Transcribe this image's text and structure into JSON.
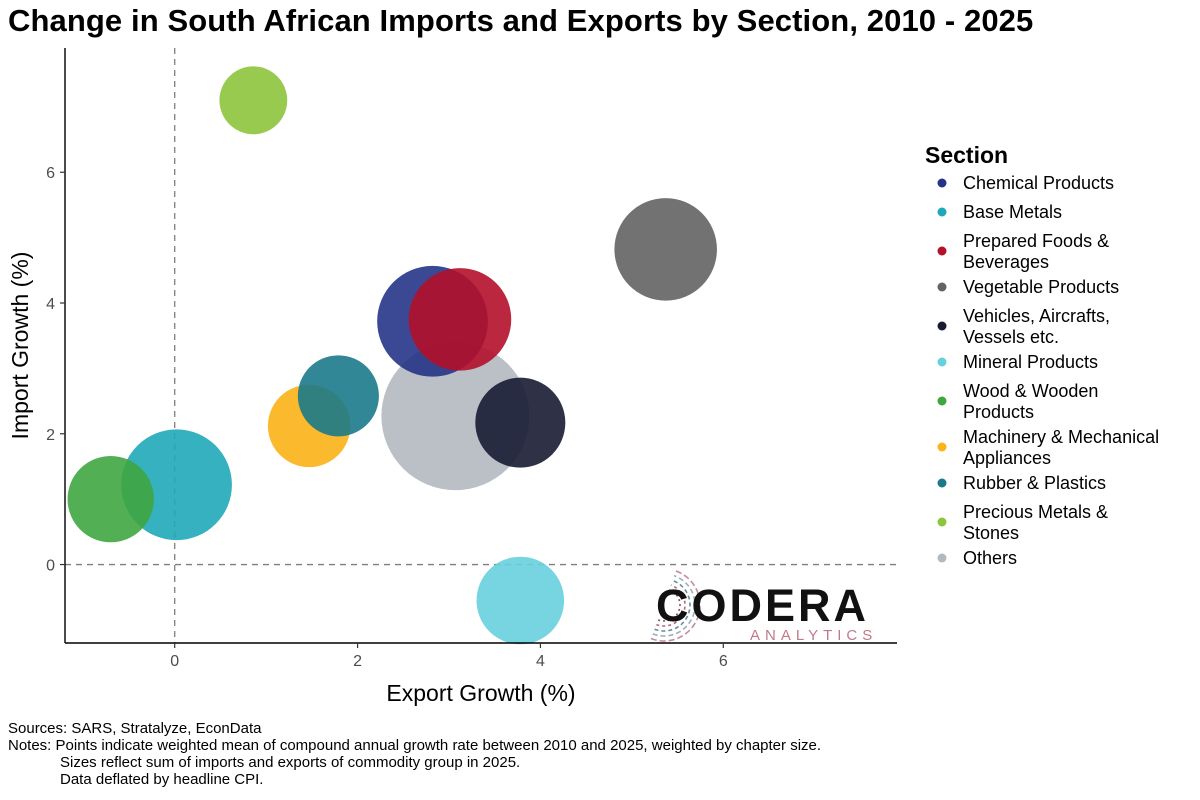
{
  "chart_data": {
    "type": "scatter",
    "title": "Change in South African Imports and Exports by Section, 2010 - 2025",
    "xlabel": "Export Growth (%)",
    "ylabel": "Import Growth (%)",
    "xlim": [
      -1.2,
      7.9
    ],
    "ylim": [
      -1.2,
      7.9
    ],
    "xticks": [
      0,
      2,
      4,
      6
    ],
    "yticks": [
      0,
      2,
      4,
      6
    ],
    "reference_lines": {
      "x": 0,
      "y": 0,
      "style": "dashed"
    },
    "grid": false,
    "legend": {
      "title": "Section",
      "position": "right"
    },
    "series": [
      {
        "label_lines": [
          "Chemical Products"
        ],
        "color": "#263487",
        "x": 2.82,
        "y": 3.72,
        "size_rel": 0.56
      },
      {
        "label_lines": [
          "Base Metals"
        ],
        "color": "#1fa8b8",
        "x": 0.02,
        "y": 1.22,
        "size_rel": 0.56
      },
      {
        "label_lines": [
          "Prepared Foods &",
          "Beverages"
        ],
        "color": "#b3102a",
        "x": 3.12,
        "y": 3.75,
        "size_rel": 0.48
      },
      {
        "label_lines": [
          "Vegetable Products"
        ],
        "color": "#636363",
        "x": 5.37,
        "y": 4.82,
        "size_rel": 0.48
      },
      {
        "label_lines": [
          "Vehicles, Aircrafts,",
          "Vessels etc."
        ],
        "color": "#181c33",
        "x": 3.78,
        "y": 2.17,
        "size_rel": 0.37
      },
      {
        "label_lines": [
          "Mineral Products"
        ],
        "color": "#67d0dd",
        "x": 3.78,
        "y": -0.55,
        "size_rel": 0.35
      },
      {
        "label_lines": [
          "Wood & Wooden",
          "Products"
        ],
        "color": "#3fa640",
        "x": -0.7,
        "y": 1.0,
        "size_rel": 0.34
      },
      {
        "label_lines": [
          "Machinery & Mechanical",
          "Appliances"
        ],
        "color": "#fbb317",
        "x": 1.47,
        "y": 2.12,
        "size_rel": 0.31
      },
      {
        "label_lines": [
          "Rubber & Plastics"
        ],
        "color": "#1b7a89",
        "x": 1.79,
        "y": 2.58,
        "size_rel": 0.3
      },
      {
        "label_lines": [
          "Precious Metals &",
          "Stones"
        ],
        "color": "#8cc43c",
        "x": 0.86,
        "y": 7.1,
        "size_rel": 0.21
      },
      {
        "label_lines": [
          "Others"
        ],
        "color": "#b4b9c1",
        "x": 3.07,
        "y": 2.27,
        "size_rel": 1.0
      }
    ]
  },
  "logo": {
    "word": "CODERA",
    "sub": "ANALYTICS"
  },
  "footer": {
    "sources": "Sources: SARS, Stratalyze, EconData",
    "notes": [
      "Notes: Points indicate weighted mean of compound annual growth rate between 2010 and 2025, weighted by chapter size.",
      "Sizes reflect sum of imports and exports of commodity group in 2025.",
      "Data deflated by headline CPI."
    ]
  }
}
